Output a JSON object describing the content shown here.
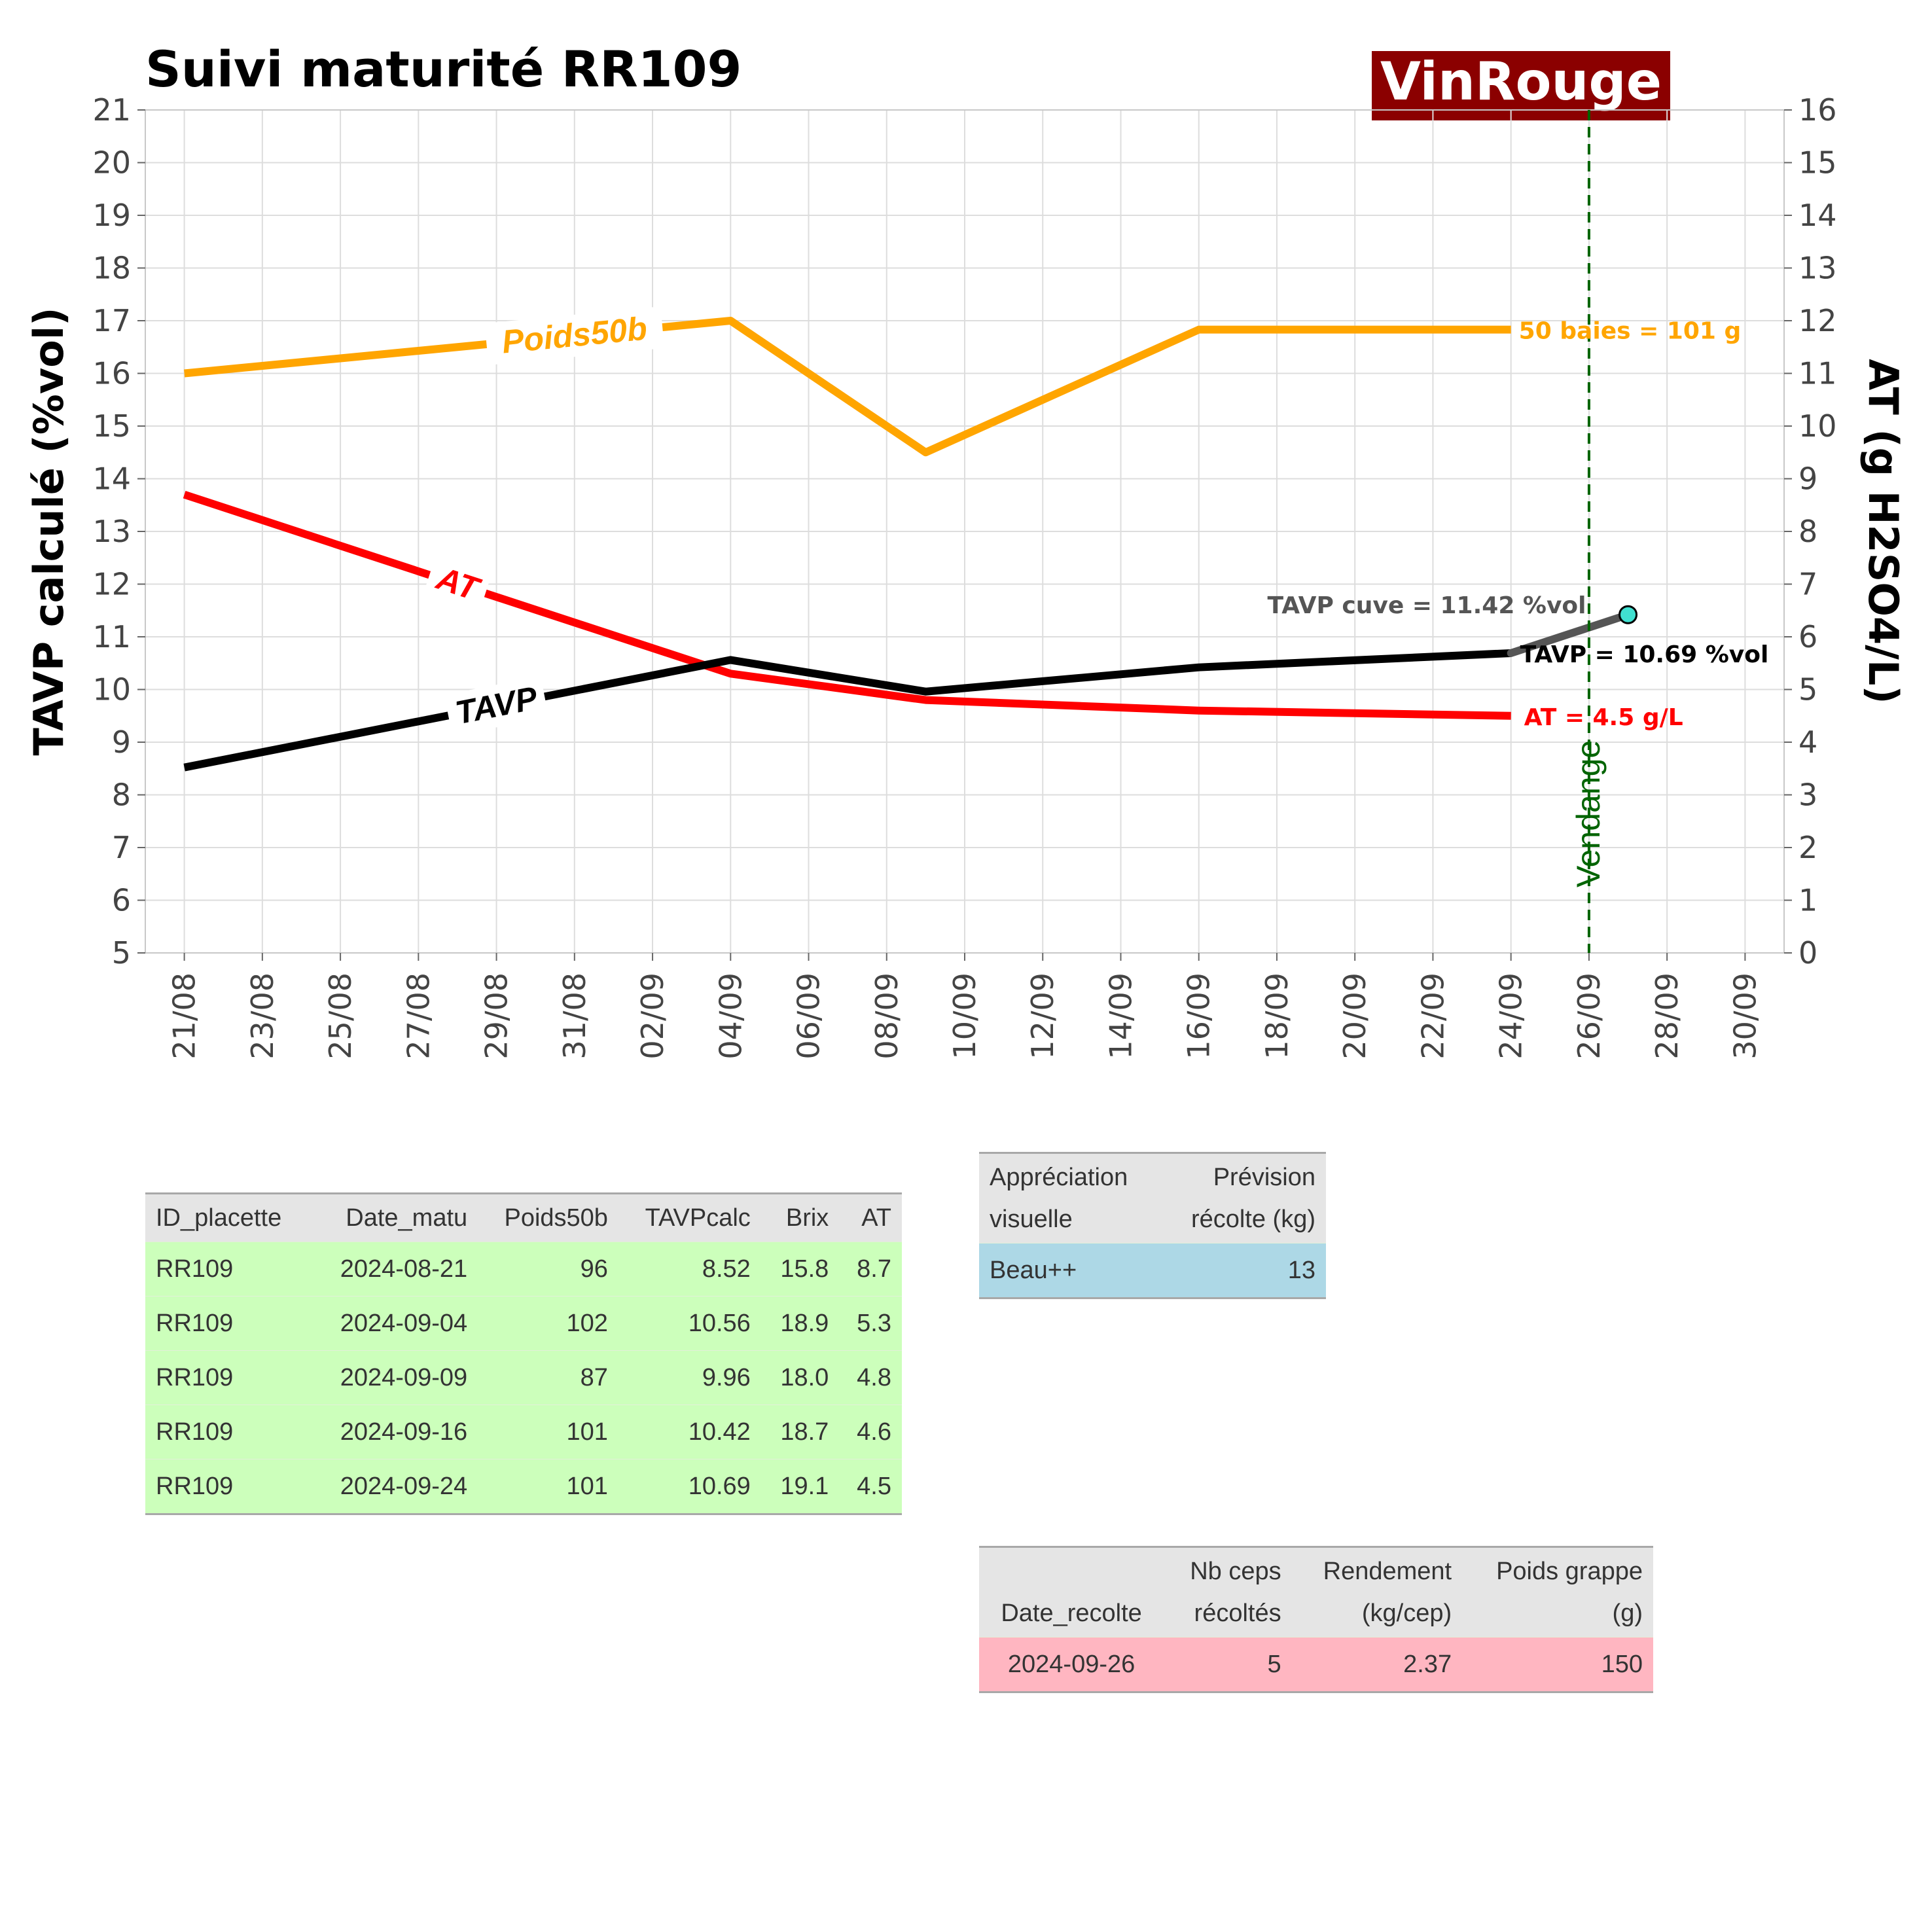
{
  "title": "Suivi maturité  RR109",
  "logo_text": "VinRouge",
  "chart_data": {
    "type": "line",
    "x_tick_labels": [
      "21/08",
      "23/08",
      "25/08",
      "27/08",
      "29/08",
      "31/08",
      "02/09",
      "04/09",
      "06/09",
      "08/09",
      "10/09",
      "12/09",
      "14/09",
      "16/09",
      "18/09",
      "20/09",
      "22/09",
      "24/09",
      "26/09",
      "28/09",
      "30/09"
    ],
    "xlim": [
      "2024-08-20",
      "2024-10-01"
    ],
    "y_left": {
      "label": "TAVP calculé (%vol)",
      "range": [
        5,
        21
      ]
    },
    "y_right": {
      "label": "AT (g H2SO4/L)",
      "range": [
        0,
        16
      ]
    },
    "grid": true,
    "colors": {
      "Poids50b": "#ffa500",
      "AT": "#ff0000",
      "TAVP": "#000000",
      "cuve": "#555555",
      "vendange": "#006400",
      "logo_bg": "#8b0000"
    },
    "series": [
      {
        "name": "Poids50b",
        "axis": "left",
        "x": [
          "2024-08-21",
          "2024-09-04",
          "2024-09-09",
          "2024-09-16",
          "2024-09-24"
        ],
        "y": [
          16.0,
          17.0,
          14.5,
          16.83,
          16.83
        ]
      },
      {
        "name": "AT",
        "axis": "right",
        "x": [
          "2024-08-21",
          "2024-09-04",
          "2024-09-09",
          "2024-09-16",
          "2024-09-24"
        ],
        "y": [
          8.7,
          5.3,
          4.8,
          4.6,
          4.5
        ]
      },
      {
        "name": "TAVP",
        "axis": "left",
        "x": [
          "2024-08-21",
          "2024-09-04",
          "2024-09-09",
          "2024-09-16",
          "2024-09-24"
        ],
        "y": [
          8.52,
          10.56,
          9.96,
          10.42,
          10.69
        ]
      }
    ],
    "cuve_segment": {
      "x": [
        "2024-09-24",
        "2024-09-27"
      ],
      "y": [
        10.69,
        11.42
      ]
    },
    "vline": {
      "x": "2024-09-26",
      "label": "Vendange"
    },
    "inline_labels": [
      {
        "text": "Poids50b",
        "series": "Poids50b",
        "x": "2024-08-31"
      },
      {
        "text": "AT",
        "series": "AT",
        "x": "2024-08-28"
      },
      {
        "text": "TAVP",
        "series": "TAVP",
        "x": "2024-08-29"
      }
    ],
    "end_labels": [
      {
        "text": "50 baies = 101 g",
        "series": "Poids50b"
      },
      {
        "text": "TAVP = 10.69 %vol",
        "series": "TAVP"
      },
      {
        "text": "AT = 4.5 g/L",
        "series": "AT"
      },
      {
        "text": "TAVP cuve = 11.42 %vol",
        "series": "cuve"
      }
    ]
  },
  "table_matu": {
    "headers": [
      "ID_placette",
      "Date_matu",
      "Poids50b",
      "TAVPcalc",
      "Brix",
      "AT"
    ],
    "rows": [
      [
        "RR109",
        "2024-08-21",
        "96",
        "8.52",
        "15.8",
        "8.7"
      ],
      [
        "RR109",
        "2024-09-04",
        "102",
        "10.56",
        "18.9",
        "5.3"
      ],
      [
        "RR109",
        "2024-09-09",
        "87",
        "9.96",
        "18.0",
        "4.8"
      ],
      [
        "RR109",
        "2024-09-16",
        "101",
        "10.42",
        "18.7",
        "4.6"
      ],
      [
        "RR109",
        "2024-09-24",
        "101",
        "10.69",
        "19.1",
        "4.5"
      ]
    ]
  },
  "table_appreciation": {
    "headers": [
      [
        "Appréciation",
        "visuelle"
      ],
      [
        "Prévision",
        "récolte (kg)"
      ]
    ],
    "rows": [
      [
        "Beau++",
        "13"
      ]
    ]
  },
  "table_recolte": {
    "headers": [
      [
        "",
        "Date_recolte"
      ],
      [
        "Nb ceps",
        "récoltés"
      ],
      [
        "Rendement",
        "(kg/cep)"
      ],
      [
        "Poids grappe",
        "(g)"
      ]
    ],
    "rows": [
      [
        "2024-09-26",
        "5",
        "2.37",
        "150"
      ]
    ]
  }
}
